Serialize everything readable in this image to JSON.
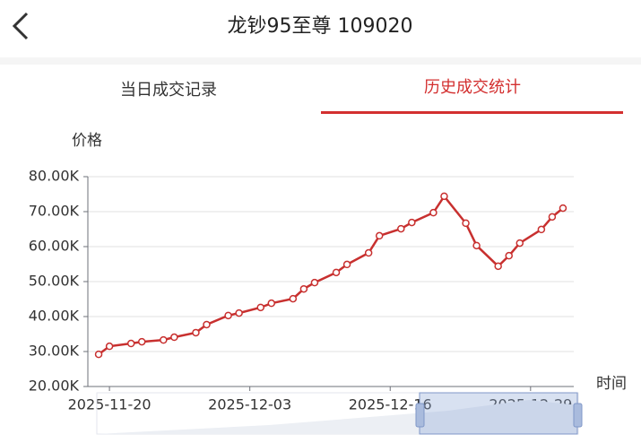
{
  "header": {
    "title": "龙钞95至尊 109020"
  },
  "tabs": [
    "当日成交记录",
    "历史成交统计"
  ],
  "chart_data": {
    "type": "line",
    "y_label": "价格",
    "x_label": "时间",
    "x": [
      "2025-11-19",
      "2025-11-20",
      "2025-11-22",
      "2025-11-23",
      "2025-11-25",
      "2025-11-26",
      "2025-11-28",
      "2025-11-29",
      "2025-12-01",
      "2025-12-02",
      "2025-12-04",
      "2025-12-05",
      "2025-12-07",
      "2025-12-08",
      "2025-12-09",
      "2025-12-11",
      "2025-12-12",
      "2025-12-14",
      "2025-12-15",
      "2025-12-17",
      "2025-12-18",
      "2025-12-20",
      "2025-12-21",
      "2025-12-23",
      "2025-12-24",
      "2025-12-26",
      "2025-12-27",
      "2025-12-28",
      "2025-12-30",
      "2025-12-31",
      "2026-01-01"
    ],
    "series": [
      {
        "name": "价格",
        "color": "#c8302f",
        "values": [
          29200,
          31500,
          32300,
          32800,
          33300,
          34100,
          35400,
          37700,
          40300,
          41000,
          42600,
          43800,
          45100,
          47900,
          49700,
          52600,
          54900,
          58200,
          63100,
          65100,
          66900,
          69700,
          74400,
          66700,
          60300,
          54400,
          57400,
          61000,
          64900,
          68500,
          71000
        ]
      }
    ],
    "xlim": [
      "2025-11-18",
      "2026-01-02"
    ],
    "xticks": [
      "2025-11-20",
      "2025-12-03",
      "2025-12-16",
      "2025-12-29"
    ],
    "ylim": [
      20000,
      80000
    ],
    "yticks": [
      {
        "value": 20000,
        "label": "20.00K"
      },
      {
        "value": 30000,
        "label": "30.00K"
      },
      {
        "value": 40000,
        "label": "40.00K"
      },
      {
        "value": 50000,
        "label": "50.00K"
      },
      {
        "value": 60000,
        "label": "60.00K"
      },
      {
        "value": 70000,
        "label": "70.00K"
      },
      {
        "value": 80000,
        "label": "80.00K"
      }
    ],
    "grid": true
  }
}
